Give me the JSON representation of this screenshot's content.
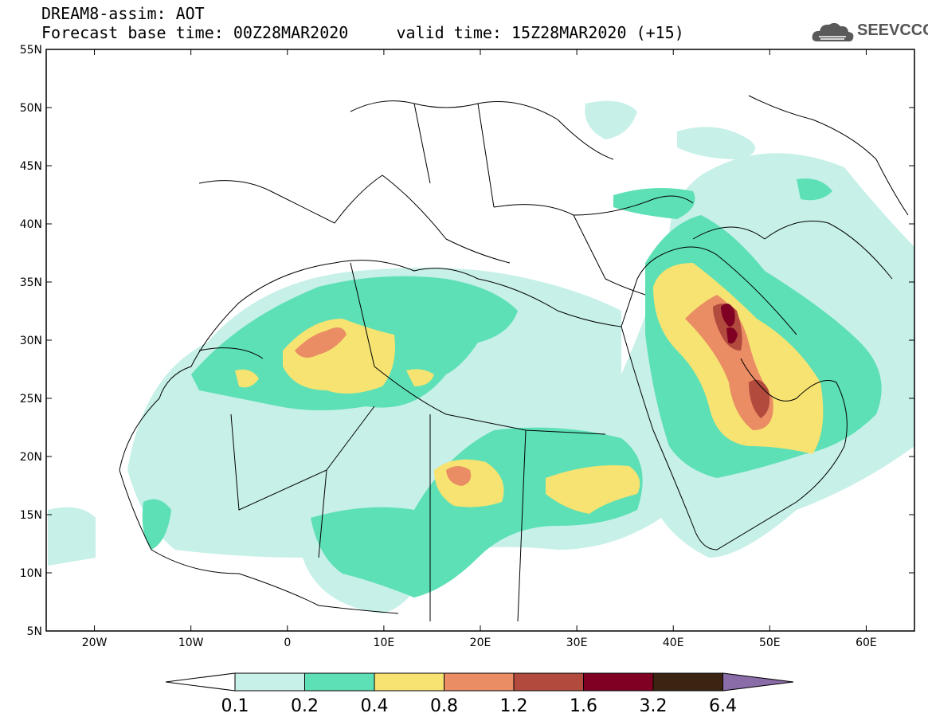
{
  "header": {
    "line1": "DREAM8-assim: AOT",
    "line2": "Forecast base time: 00Z28MAR2020     valid time: 15Z28MAR2020 (+15)",
    "logo_text": "SEEVCCC"
  },
  "map": {
    "lon_range": [
      -25,
      65
    ],
    "lat_range": [
      5,
      55
    ],
    "x_ticks": [
      {
        "lon": -20,
        "label": "20W"
      },
      {
        "lon": -10,
        "label": "10W"
      },
      {
        "lon": 0,
        "label": "0"
      },
      {
        "lon": 10,
        "label": "10E"
      },
      {
        "lon": 20,
        "label": "20E"
      },
      {
        "lon": 30,
        "label": "30E"
      },
      {
        "lon": 40,
        "label": "40E"
      },
      {
        "lon": 50,
        "label": "50E"
      },
      {
        "lon": 60,
        "label": "60E"
      }
    ],
    "y_ticks": [
      {
        "lat": 55,
        "label": "55N"
      },
      {
        "lat": 50,
        "label": "50N"
      },
      {
        "lat": 45,
        "label": "45N"
      },
      {
        "lat": 40,
        "label": "40N"
      },
      {
        "lat": 35,
        "label": "35N"
      },
      {
        "lat": 30,
        "label": "30N"
      },
      {
        "lat": 25,
        "label": "25N"
      },
      {
        "lat": 20,
        "label": "20N"
      },
      {
        "lat": 15,
        "label": "15N"
      },
      {
        "lat": 10,
        "label": "10N"
      },
      {
        "lat": 5,
        "label": "5N"
      }
    ]
  },
  "colorbar": {
    "labels": [
      "0.1",
      "0.2",
      "0.4",
      "0.8",
      "1.2",
      "1.6",
      "3.2",
      "6.4"
    ],
    "colors": [
      "#ffffff",
      "#c6f0e8",
      "#5de0b6",
      "#f6e371",
      "#ea8d64",
      "#b24a3d",
      "#7f0022",
      "#3c2413",
      "#8a6ca8"
    ]
  }
}
